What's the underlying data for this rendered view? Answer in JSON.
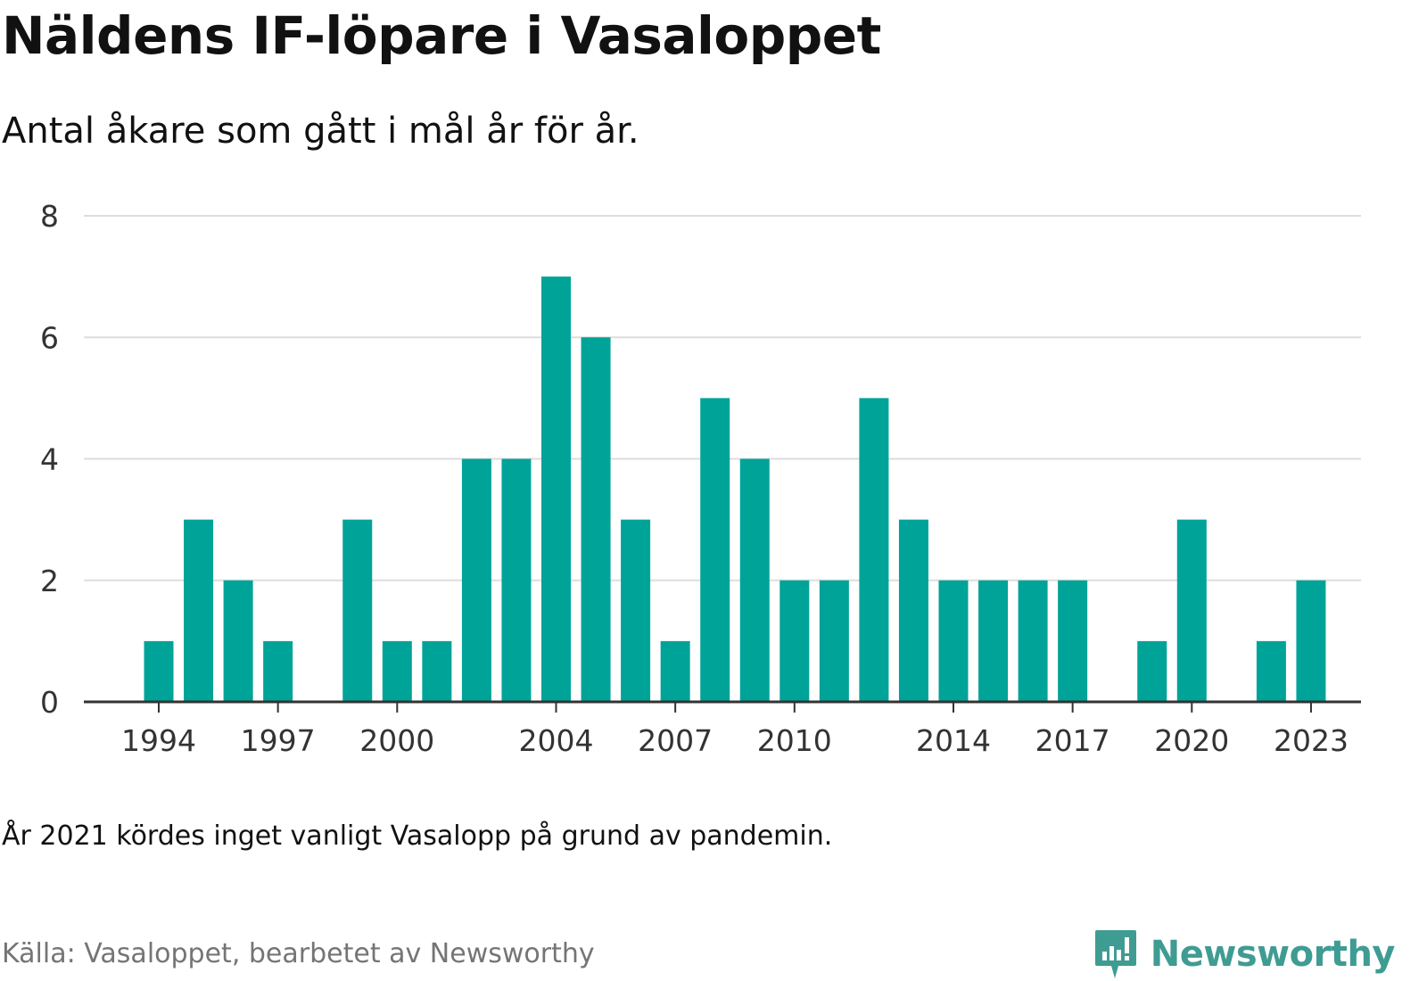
{
  "title": "Näldens IF-löpare i Vasaloppet",
  "subtitle": "Antal åkare som gått i mål år för år.",
  "note": "År 2021 kördes inget vanligt Vasalopp på grund av pandemin.",
  "source": "Källa: Vasaloppet, bearbetet av Newsworthy",
  "brand": {
    "name": "Newsworthy",
    "icon": "newsworthy-logo-icon",
    "color": "#3f9c93"
  },
  "chart_data": {
    "type": "bar",
    "color": "#00a398",
    "grid": true,
    "ylim": [
      0,
      8
    ],
    "yticks": [
      "0",
      "2",
      "4",
      "6",
      "8"
    ],
    "xticks": [
      "1994",
      "1997",
      "2000",
      "2004",
      "2007",
      "2010",
      "2014",
      "2017",
      "2020",
      "2023"
    ],
    "categories": [
      1994,
      1995,
      1996,
      1997,
      1998,
      1999,
      2000,
      2001,
      2002,
      2003,
      2004,
      2005,
      2006,
      2007,
      2008,
      2009,
      2010,
      2011,
      2012,
      2013,
      2014,
      2015,
      2016,
      2017,
      2018,
      2019,
      2020,
      2021,
      2022,
      2023
    ],
    "values": [
      1,
      3,
      2,
      1,
      0,
      3,
      1,
      1,
      4,
      4,
      7,
      6,
      3,
      1,
      5,
      4,
      2,
      2,
      5,
      3,
      2,
      2,
      2,
      2,
      0,
      1,
      3,
      0,
      1,
      2
    ]
  }
}
